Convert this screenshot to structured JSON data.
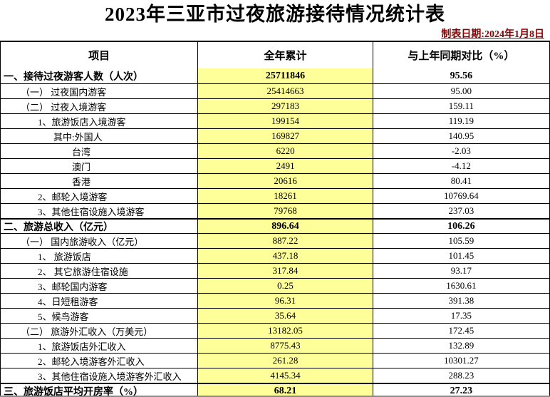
{
  "title": "2023年三亚市过夜旅游接待情况统计表",
  "date_label": "制表日期:2024年1月8日",
  "colors": {
    "highlight_column": "#FFFF99",
    "date_text": "#8B0000",
    "border": "#000000"
  },
  "table": {
    "headers": [
      "项目",
      "全年累计",
      "与上年同期对比（%）"
    ],
    "rows": [
      {
        "item": "一、接待过夜游客人数（人次）",
        "total": "25711846",
        "yoy": "95.56",
        "bold": true,
        "indent": 0
      },
      {
        "item": "（一） 过夜国内游客",
        "total": "25414663",
        "yoy": "95.00",
        "bold": false,
        "indent": 1
      },
      {
        "item": "（二） 过夜入境游客",
        "total": "297183",
        "yoy": "159.11",
        "bold": false,
        "indent": 1
      },
      {
        "item": "1、旅游饭店入境游客",
        "total": "199154",
        "yoy": "119.19",
        "bold": false,
        "indent": 2
      },
      {
        "item": "其中:外国人",
        "total": "169827",
        "yoy": "140.95",
        "bold": false,
        "indent": 3
      },
      {
        "item": "台湾",
        "total": "6220",
        "yoy": "-2.03",
        "bold": false,
        "indent": 4
      },
      {
        "item": "澳门",
        "total": "2491",
        "yoy": "-4.12",
        "bold": false,
        "indent": 4
      },
      {
        "item": "香港",
        "total": "20616",
        "yoy": "80.41",
        "bold": false,
        "indent": 4
      },
      {
        "item": "2、邮轮入境游客",
        "total": "18261",
        "yoy": "10769.64",
        "bold": false,
        "indent": 2
      },
      {
        "item": "3、其他住宿设施入境游客",
        "total": "79768",
        "yoy": "237.03",
        "bold": false,
        "indent": 2
      },
      {
        "item": "二、旅游总收入（亿元）",
        "total": "896.64",
        "yoy": "106.26",
        "bold": true,
        "indent": 0
      },
      {
        "item": "（一） 国内旅游收入（亿元）",
        "total": "887.22",
        "yoy": "105.59",
        "bold": false,
        "indent": 1
      },
      {
        "item": "1、 旅游饭店",
        "total": "437.18",
        "yoy": "101.45",
        "bold": false,
        "indent": 2
      },
      {
        "item": "2、 其它旅游住宿设施",
        "total": "317.84",
        "yoy": "93.17",
        "bold": false,
        "indent": 2
      },
      {
        "item": "3、邮轮国内游客",
        "total": "0.25",
        "yoy": "1630.61",
        "bold": false,
        "indent": 2
      },
      {
        "item": "4、日短租游客",
        "total": "96.31",
        "yoy": "391.38",
        "bold": false,
        "indent": 2
      },
      {
        "item": "5、候鸟游客",
        "total": "35.64",
        "yoy": "17.35",
        "bold": false,
        "indent": 2
      },
      {
        "item": "（二） 旅游外汇收入（万美元）",
        "total": "13182.05",
        "yoy": "172.45",
        "bold": false,
        "indent": 1
      },
      {
        "item": "1、旅游饭店外汇收入",
        "total": "8775.43",
        "yoy": "132.89",
        "bold": false,
        "indent": 2
      },
      {
        "item": "2、邮轮入境游客外汇收入",
        "total": "261.28",
        "yoy": "10301.27",
        "bold": false,
        "indent": 2
      },
      {
        "item": "3、其他住宿设施入境游客外汇收入",
        "total": "4145.34",
        "yoy": "288.23",
        "bold": false,
        "indent": 2
      },
      {
        "item": "三、旅游饭店平均开房率（%）",
        "total": "68.21",
        "yoy": "27.23",
        "bold": true,
        "indent": 0
      }
    ]
  }
}
